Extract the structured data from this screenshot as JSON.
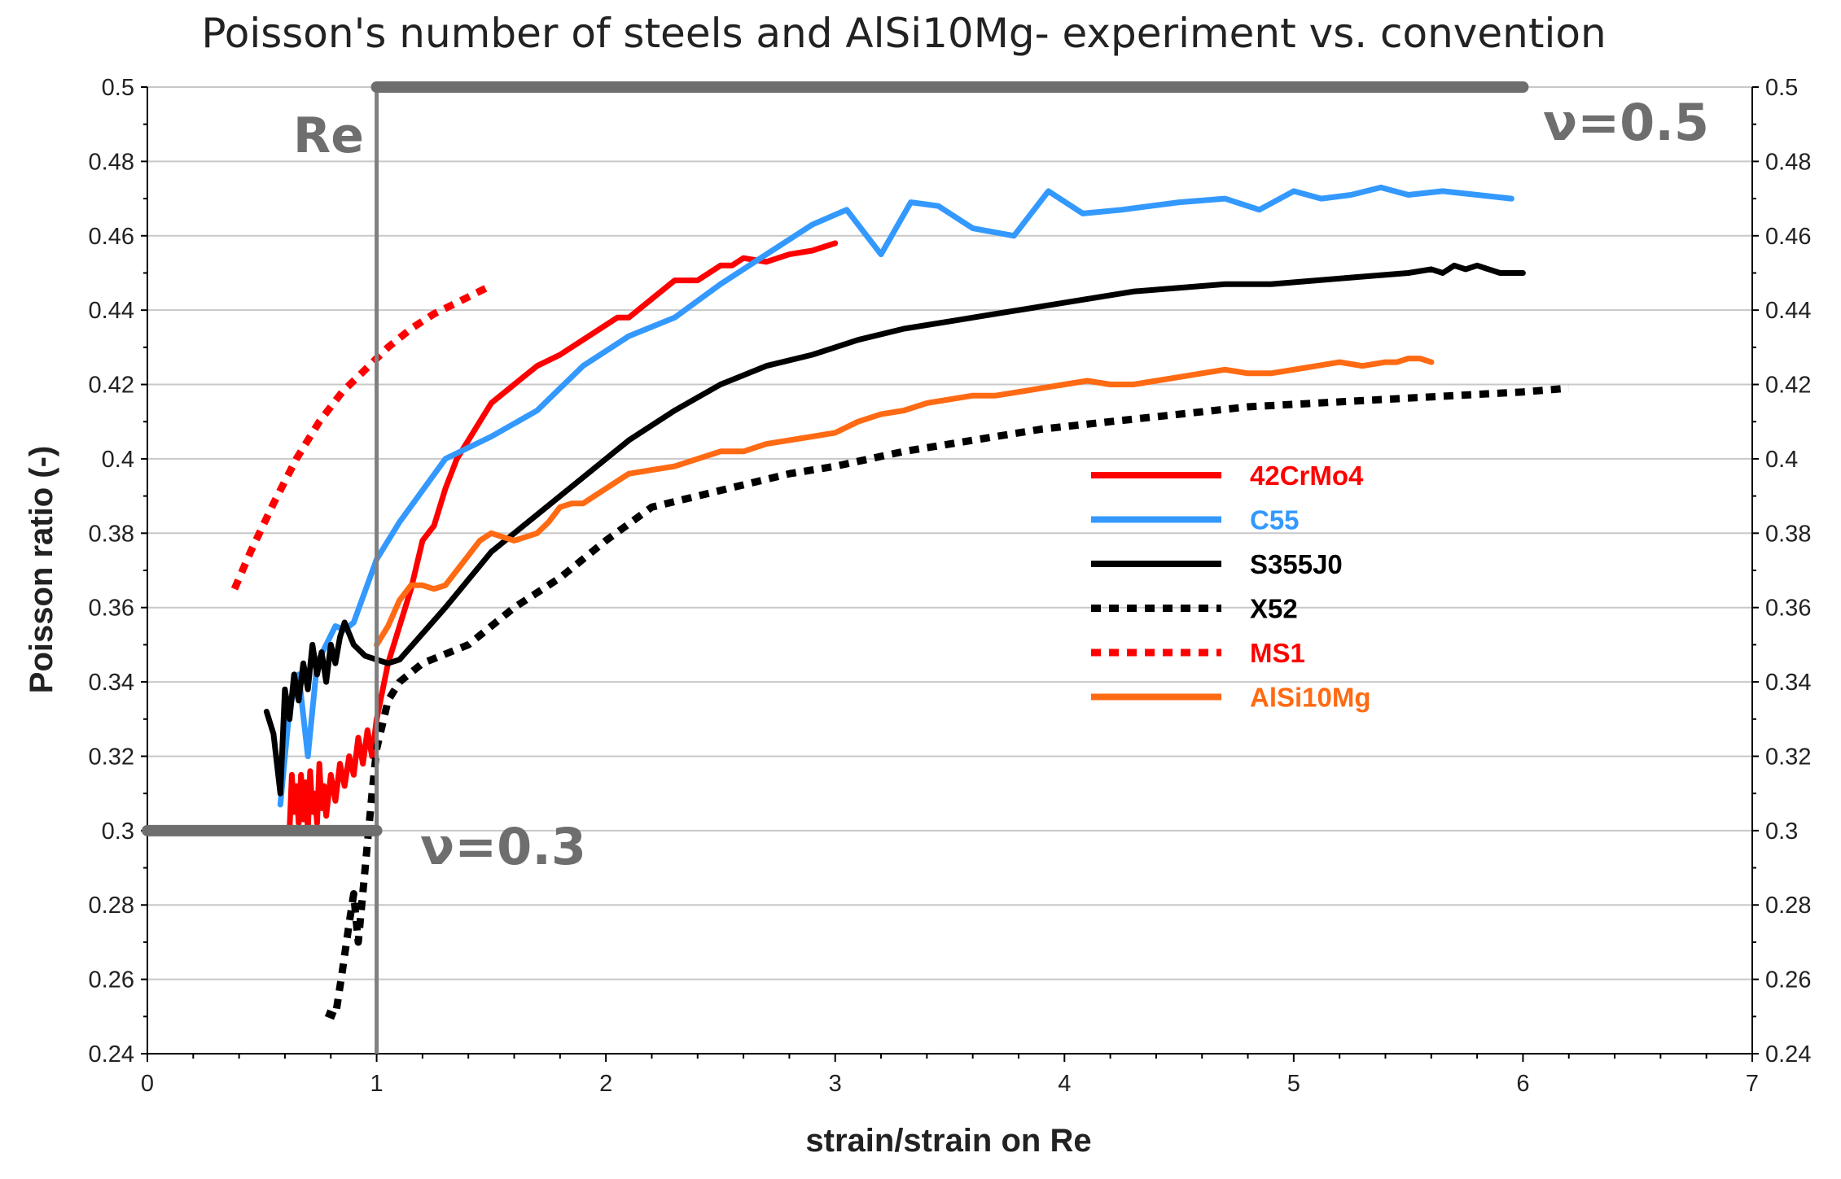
{
  "chart_data": {
    "type": "line",
    "title": "Poisson's number of steels and AlSi10Mg- experiment vs. convention",
    "xlabel": "strain/strain on Re",
    "ylabel": "Poisson ratio (-)",
    "xlim": [
      0,
      7
    ],
    "ylim": [
      0.24,
      0.5
    ],
    "x_ticks": [
      "0",
      "1",
      "2",
      "3",
      "4",
      "5",
      "6",
      "7"
    ],
    "y_ticks": [
      "0.24",
      "0.26",
      "0.28",
      "0.3",
      "0.32",
      "0.34",
      "0.36",
      "0.38",
      "0.4",
      "0.42",
      "0.44",
      "0.46",
      "0.48",
      "0.5"
    ],
    "y_ticks_right": [
      "0.24",
      "0.26",
      "0.28",
      "0.3",
      "0.32",
      "0.34",
      "0.36",
      "0.38",
      "0.4",
      "0.42",
      "0.44",
      "0.46",
      "0.48",
      "0.5"
    ],
    "grid": true,
    "legend_position": "center-right",
    "annotations": {
      "re_label": "Re",
      "re_x": 1,
      "nu_high_label": "ν=0.5",
      "nu_high_value": 0.5,
      "nu_high_x_range": [
        1,
        6
      ],
      "nu_low_label": "ν=0.3",
      "nu_low_value": 0.3,
      "nu_low_x_range": [
        0,
        1
      ]
    },
    "series": [
      {
        "name": "42CrMo4",
        "color": "#ff0000",
        "dashed": false,
        "x": [
          0.62,
          0.63,
          0.64,
          0.65,
          0.66,
          0.67,
          0.68,
          0.69,
          0.7,
          0.71,
          0.72,
          0.73,
          0.74,
          0.75,
          0.76,
          0.77,
          0.78,
          0.8,
          0.82,
          0.84,
          0.86,
          0.88,
          0.9,
          0.92,
          0.94,
          0.96,
          0.98,
          1.0,
          1.05,
          1.1,
          1.15,
          1.2,
          1.25,
          1.3,
          1.35,
          1.4,
          1.45,
          1.5,
          1.6,
          1.7,
          1.8,
          1.9,
          2.0,
          2.05,
          2.1,
          2.2,
          2.3,
          2.4,
          2.5,
          2.55,
          2.6,
          2.7,
          2.8,
          2.9,
          3.0
        ],
        "y": [
          0.3,
          0.315,
          0.305,
          0.312,
          0.302,
          0.315,
          0.303,
          0.313,
          0.3,
          0.316,
          0.305,
          0.31,
          0.302,
          0.318,
          0.306,
          0.312,
          0.304,
          0.315,
          0.308,
          0.318,
          0.312,
          0.32,
          0.315,
          0.325,
          0.318,
          0.327,
          0.32,
          0.33,
          0.345,
          0.355,
          0.365,
          0.378,
          0.382,
          0.392,
          0.4,
          0.405,
          0.41,
          0.415,
          0.42,
          0.425,
          0.428,
          0.432,
          0.436,
          0.438,
          0.438,
          0.443,
          0.448,
          0.448,
          0.452,
          0.452,
          0.454,
          0.453,
          0.455,
          0.456,
          0.458
        ]
      },
      {
        "name": "C55",
        "color": "#3399ff",
        "dashed": false,
        "x": [
          0.58,
          0.62,
          0.66,
          0.7,
          0.74,
          0.78,
          0.82,
          0.86,
          0.9,
          1.0,
          1.1,
          1.3,
          1.5,
          1.7,
          1.9,
          2.1,
          2.3,
          2.5,
          2.7,
          2.9,
          3.05,
          3.2,
          3.33,
          3.45,
          3.6,
          3.78,
          3.93,
          4.08,
          4.25,
          4.5,
          4.7,
          4.85,
          5.0,
          5.12,
          5.25,
          5.38,
          5.5,
          5.65,
          5.8,
          5.95
        ],
        "y": [
          0.307,
          0.333,
          0.342,
          0.32,
          0.345,
          0.35,
          0.355,
          0.354,
          0.356,
          0.373,
          0.383,
          0.4,
          0.406,
          0.413,
          0.425,
          0.433,
          0.438,
          0.447,
          0.455,
          0.463,
          0.467,
          0.455,
          0.469,
          0.468,
          0.462,
          0.46,
          0.472,
          0.466,
          0.467,
          0.469,
          0.47,
          0.467,
          0.472,
          0.47,
          0.471,
          0.473,
          0.471,
          0.472,
          0.471,
          0.47
        ]
      },
      {
        "name": "S355J0",
        "color": "#000000",
        "dashed": false,
        "x": [
          0.52,
          0.55,
          0.58,
          0.6,
          0.62,
          0.64,
          0.66,
          0.68,
          0.7,
          0.72,
          0.74,
          0.76,
          0.78,
          0.8,
          0.82,
          0.84,
          0.86,
          0.88,
          0.9,
          0.95,
          1.0,
          1.05,
          1.1,
          1.3,
          1.5,
          1.7,
          1.9,
          2.1,
          2.3,
          2.5,
          2.7,
          2.9,
          3.1,
          3.3,
          3.5,
          3.7,
          3.9,
          4.1,
          4.3,
          4.5,
          4.7,
          4.9,
          5.1,
          5.3,
          5.5,
          5.6,
          5.65,
          5.7,
          5.75,
          5.8,
          5.85,
          5.9,
          6.0
        ],
        "y": [
          0.332,
          0.326,
          0.31,
          0.338,
          0.33,
          0.342,
          0.335,
          0.345,
          0.338,
          0.35,
          0.342,
          0.348,
          0.34,
          0.35,
          0.345,
          0.352,
          0.356,
          0.353,
          0.35,
          0.347,
          0.346,
          0.345,
          0.346,
          0.36,
          0.375,
          0.385,
          0.395,
          0.405,
          0.413,
          0.42,
          0.425,
          0.428,
          0.432,
          0.435,
          0.437,
          0.439,
          0.441,
          0.443,
          0.445,
          0.446,
          0.447,
          0.447,
          0.448,
          0.449,
          0.45,
          0.451,
          0.45,
          0.452,
          0.451,
          0.452,
          0.451,
          0.45,
          0.45
        ]
      },
      {
        "name": "X52",
        "color": "#000000",
        "dashed": true,
        "x": [
          0.78,
          0.82,
          0.85,
          0.88,
          0.9,
          0.92,
          0.95,
          0.98,
          1.0,
          1.05,
          1.1,
          1.2,
          1.4,
          1.6,
          1.8,
          2.0,
          2.2,
          2.4,
          2.6,
          2.8,
          3.0,
          3.3,
          3.6,
          3.9,
          4.2,
          4.5,
          4.8,
          5.1,
          5.4,
          5.7,
          6.0,
          6.2
        ],
        "y": [
          0.251,
          0.25,
          0.262,
          0.275,
          0.283,
          0.27,
          0.29,
          0.31,
          0.322,
          0.335,
          0.34,
          0.345,
          0.35,
          0.36,
          0.368,
          0.378,
          0.387,
          0.39,
          0.393,
          0.396,
          0.398,
          0.402,
          0.405,
          0.408,
          0.41,
          0.412,
          0.414,
          0.415,
          0.416,
          0.417,
          0.418,
          0.419
        ]
      },
      {
        "name": "MS1",
        "color": "#ff0000",
        "dashed": true,
        "x": [
          0.38,
          0.45,
          0.55,
          0.65,
          0.75,
          0.85,
          0.95,
          1.05,
          1.15,
          1.25,
          1.35,
          1.48
        ],
        "y": [
          0.365,
          0.375,
          0.388,
          0.4,
          0.41,
          0.418,
          0.424,
          0.43,
          0.435,
          0.439,
          0.442,
          0.446
        ]
      },
      {
        "name": "AlSi10Mg",
        "color": "#ff6a13",
        "dashed": false,
        "x": [
          1.0,
          1.05,
          1.1,
          1.15,
          1.2,
          1.25,
          1.3,
          1.35,
          1.4,
          1.45,
          1.5,
          1.55,
          1.6,
          1.65,
          1.7,
          1.75,
          1.8,
          1.85,
          1.9,
          1.95,
          2.0,
          2.05,
          2.1,
          2.2,
          2.3,
          2.4,
          2.5,
          2.6,
          2.65,
          2.7,
          2.8,
          2.9,
          3.0,
          3.1,
          3.2,
          3.3,
          3.4,
          3.5,
          3.6,
          3.7,
          3.8,
          3.9,
          4.0,
          4.1,
          4.2,
          4.3,
          4.4,
          4.5,
          4.6,
          4.7,
          4.8,
          4.9,
          5.0,
          5.1,
          5.2,
          5.3,
          5.4,
          5.45,
          5.5,
          5.55,
          5.6
        ],
        "y": [
          0.35,
          0.355,
          0.362,
          0.366,
          0.366,
          0.365,
          0.366,
          0.37,
          0.374,
          0.378,
          0.38,
          0.379,
          0.378,
          0.379,
          0.38,
          0.383,
          0.387,
          0.388,
          0.388,
          0.39,
          0.392,
          0.394,
          0.396,
          0.397,
          0.398,
          0.4,
          0.402,
          0.402,
          0.403,
          0.404,
          0.405,
          0.406,
          0.407,
          0.41,
          0.412,
          0.413,
          0.415,
          0.416,
          0.417,
          0.417,
          0.418,
          0.419,
          0.42,
          0.421,
          0.42,
          0.42,
          0.421,
          0.422,
          0.423,
          0.424,
          0.423,
          0.423,
          0.424,
          0.425,
          0.426,
          0.425,
          0.426,
          0.426,
          0.427,
          0.427,
          0.426
        ]
      }
    ]
  }
}
